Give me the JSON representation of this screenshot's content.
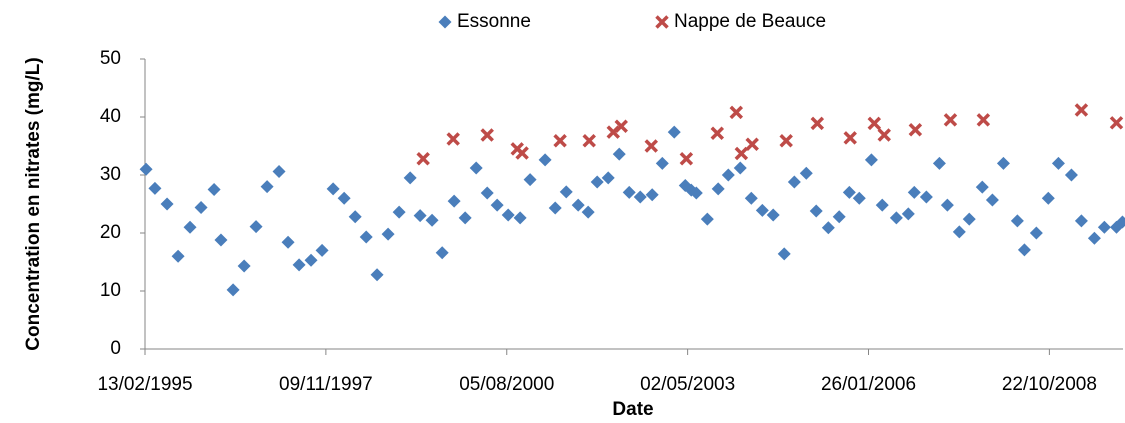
{
  "chart_data": {
    "type": "scatter",
    "x_label": "Date",
    "y_label": "Concentration en nitrates (mg/L)",
    "xlim": [
      34743,
      40150
    ],
    "xticks": [
      {
        "value": 34743,
        "label": "13/02/1995"
      },
      {
        "value": 35743,
        "label": "09/11/1997"
      },
      {
        "value": 36743,
        "label": "05/08/2000"
      },
      {
        "value": 37743,
        "label": "02/05/2003"
      },
      {
        "value": 38743,
        "label": "26/01/2006"
      },
      {
        "value": 39743,
        "label": "22/10/2008"
      }
    ],
    "ylim": [
      0,
      50
    ],
    "yticks": [
      0,
      10,
      20,
      30,
      40,
      50
    ],
    "grid": false,
    "legend": "top",
    "series": [
      {
        "name": "Essonne",
        "color": "#4a7ebb",
        "marker": "diamond",
        "x": [
          34749,
          34798,
          34865,
          34926,
          34992,
          35053,
          35125,
          35163,
          35230,
          35291,
          35357,
          35418,
          35484,
          35534,
          35595,
          35661,
          35722,
          35783,
          35844,
          35905,
          35966,
          36026,
          36087,
          36148,
          36209,
          36264,
          36330,
          36386,
          36452,
          36513,
          36574,
          36635,
          36690,
          36751,
          36817,
          36872,
          36955,
          37011,
          37072,
          37138,
          37193,
          37243,
          37304,
          37365,
          37420,
          37481,
          37547,
          37603,
          37669,
          37730,
          37763,
          37791,
          37852,
          37912,
          37968,
          38034,
          38095,
          38156,
          38216,
          38277,
          38333,
          38399,
          38454,
          38521,
          38581,
          38637,
          38692,
          38759,
          38819,
          38897,
          38963,
          38996,
          39063,
          39135,
          39179,
          39245,
          39300,
          39372,
          39428,
          39489,
          39566,
          39605,
          39671,
          39737,
          39793,
          39865,
          39920,
          39992,
          40047,
          40114,
          40147
        ],
        "values": [
          31,
          27.7,
          25,
          16,
          21,
          24.4,
          27.5,
          18.8,
          10.2,
          14.3,
          21.1,
          28,
          30.6,
          18.4,
          14.5,
          15.3,
          17,
          27.6,
          26,
          22.8,
          19.3,
          12.8,
          19.8,
          23.6,
          29.5,
          23,
          22.2,
          16.6,
          25.5,
          22.6,
          31.2,
          26.9,
          24.8,
          23.1,
          22.6,
          29.2,
          32.6,
          24.3,
          27.1,
          24.8,
          23.6,
          28.8,
          29.5,
          33.6,
          27,
          26.2,
          26.6,
          32,
          37.4,
          28.2,
          27.4,
          26.9,
          22.4,
          27.6,
          30,
          31.2,
          26,
          23.9,
          23.1,
          16.4,
          28.8,
          30.3,
          23.8,
          20.9,
          22.8,
          27,
          26,
          32.6,
          24.8,
          22.6,
          23.3,
          27,
          26.2,
          32,
          24.8,
          20.2,
          22.4,
          27.9,
          25.7,
          32,
          22.1,
          17.1,
          20,
          26,
          32,
          30,
          22.1,
          19.1,
          21,
          21,
          21.9
        ]
      },
      {
        "name": "Nappe de Beauce",
        "color": "#be4b48",
        "marker": "cross",
        "x": [
          36281,
          36447,
          36635,
          36801,
          36828,
          37038,
          37199,
          37332,
          37376,
          37542,
          37736,
          37907,
          38012,
          38040,
          38100,
          38288,
          38460,
          38642,
          38775,
          38830,
          39002,
          39196,
          39378,
          39920,
          40114
        ],
        "values": [
          32.8,
          36.2,
          36.9,
          34.5,
          33.8,
          35.9,
          35.9,
          37.4,
          38.4,
          35,
          32.8,
          37.2,
          40.8,
          33.7,
          35.3,
          35.9,
          38.9,
          36.4,
          38.9,
          36.9,
          37.8,
          39.5,
          39.5,
          41.2,
          39
        ]
      }
    ]
  }
}
